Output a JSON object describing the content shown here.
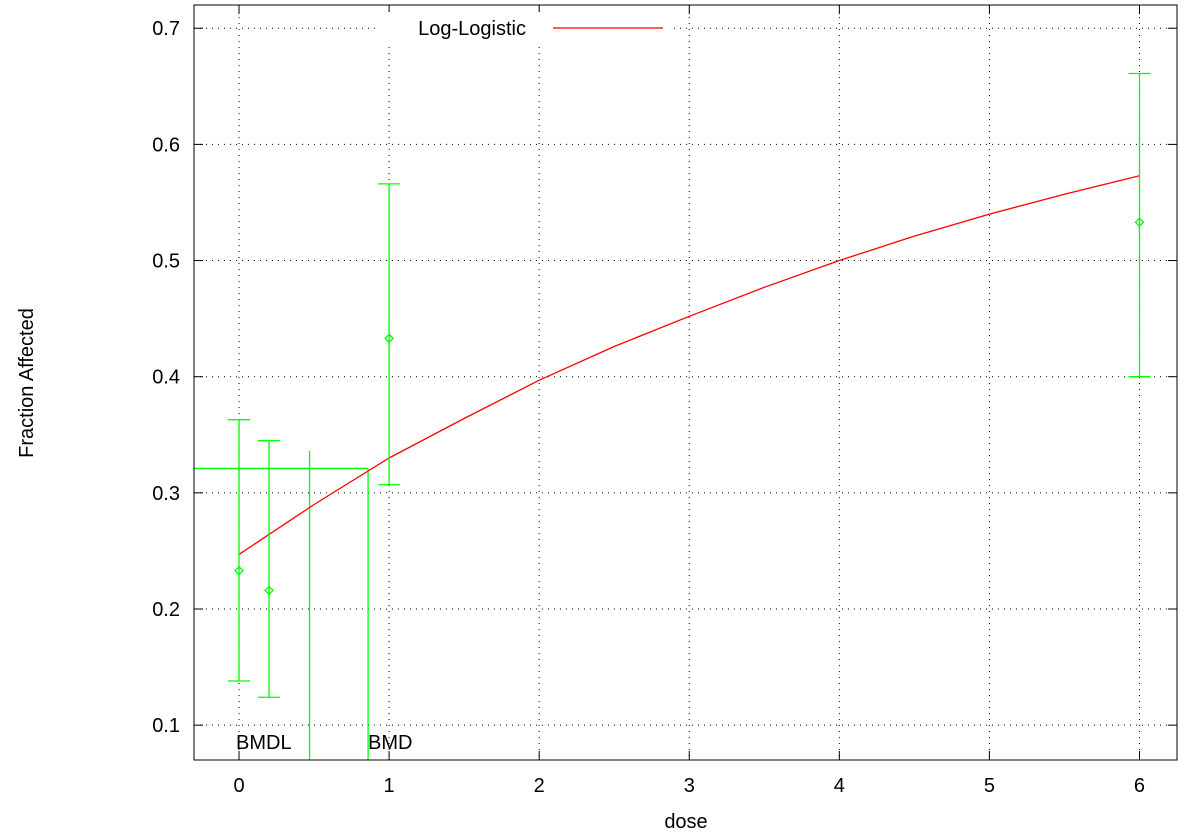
{
  "chart_data": {
    "type": "scatter",
    "xlabel": "dose",
    "ylabel": "Fraction Affected",
    "xlim": [
      -0.3,
      6.25
    ],
    "ylim": [
      0.07,
      0.72
    ],
    "x_ticks": [
      "0",
      "1",
      "2",
      "3",
      "4",
      "5",
      "6"
    ],
    "y_ticks": [
      "0.1",
      "0.2",
      "0.3",
      "0.4",
      "0.5",
      "0.6",
      "0.7"
    ],
    "grid": true,
    "legend_position": "top-center",
    "series": [
      {
        "name": "Log-Logistic",
        "kind": "fitted-line",
        "color": "#ff0000",
        "x_range": [
          0,
          6
        ],
        "y_at_0": 0.247,
        "y_at_6": 0.573,
        "curve": [
          [
            0,
            0.247
          ],
          [
            0.5,
            0.29
          ],
          [
            1,
            0.33
          ],
          [
            1.5,
            0.364
          ],
          [
            2,
            0.397
          ],
          [
            2.5,
            0.426
          ],
          [
            3,
            0.452
          ],
          [
            3.5,
            0.477
          ],
          [
            4,
            0.5
          ],
          [
            4.5,
            0.521
          ],
          [
            5,
            0.54
          ],
          [
            5.5,
            0.557
          ],
          [
            6,
            0.573
          ]
        ]
      },
      {
        "kind": "observed",
        "color": "#00ff00",
        "points": [
          {
            "x": 0,
            "y": 0.233,
            "lo": 0.138,
            "hi": 0.363
          },
          {
            "x": 0.2,
            "y": 0.216,
            "lo": 0.124,
            "hi": 0.345
          },
          {
            "x": 1,
            "y": 0.433,
            "lo": 0.307,
            "hi": 0.566
          },
          {
            "x": 6,
            "y": 0.533,
            "lo": 0.4,
            "hi": 0.661
          }
        ]
      }
    ],
    "bmr_response": 0.321,
    "bmdl": {
      "label": "BMDL",
      "x": 0.47,
      "bar_top": 0.336
    },
    "bmd": {
      "label": "BMD",
      "x": 0.86
    }
  }
}
